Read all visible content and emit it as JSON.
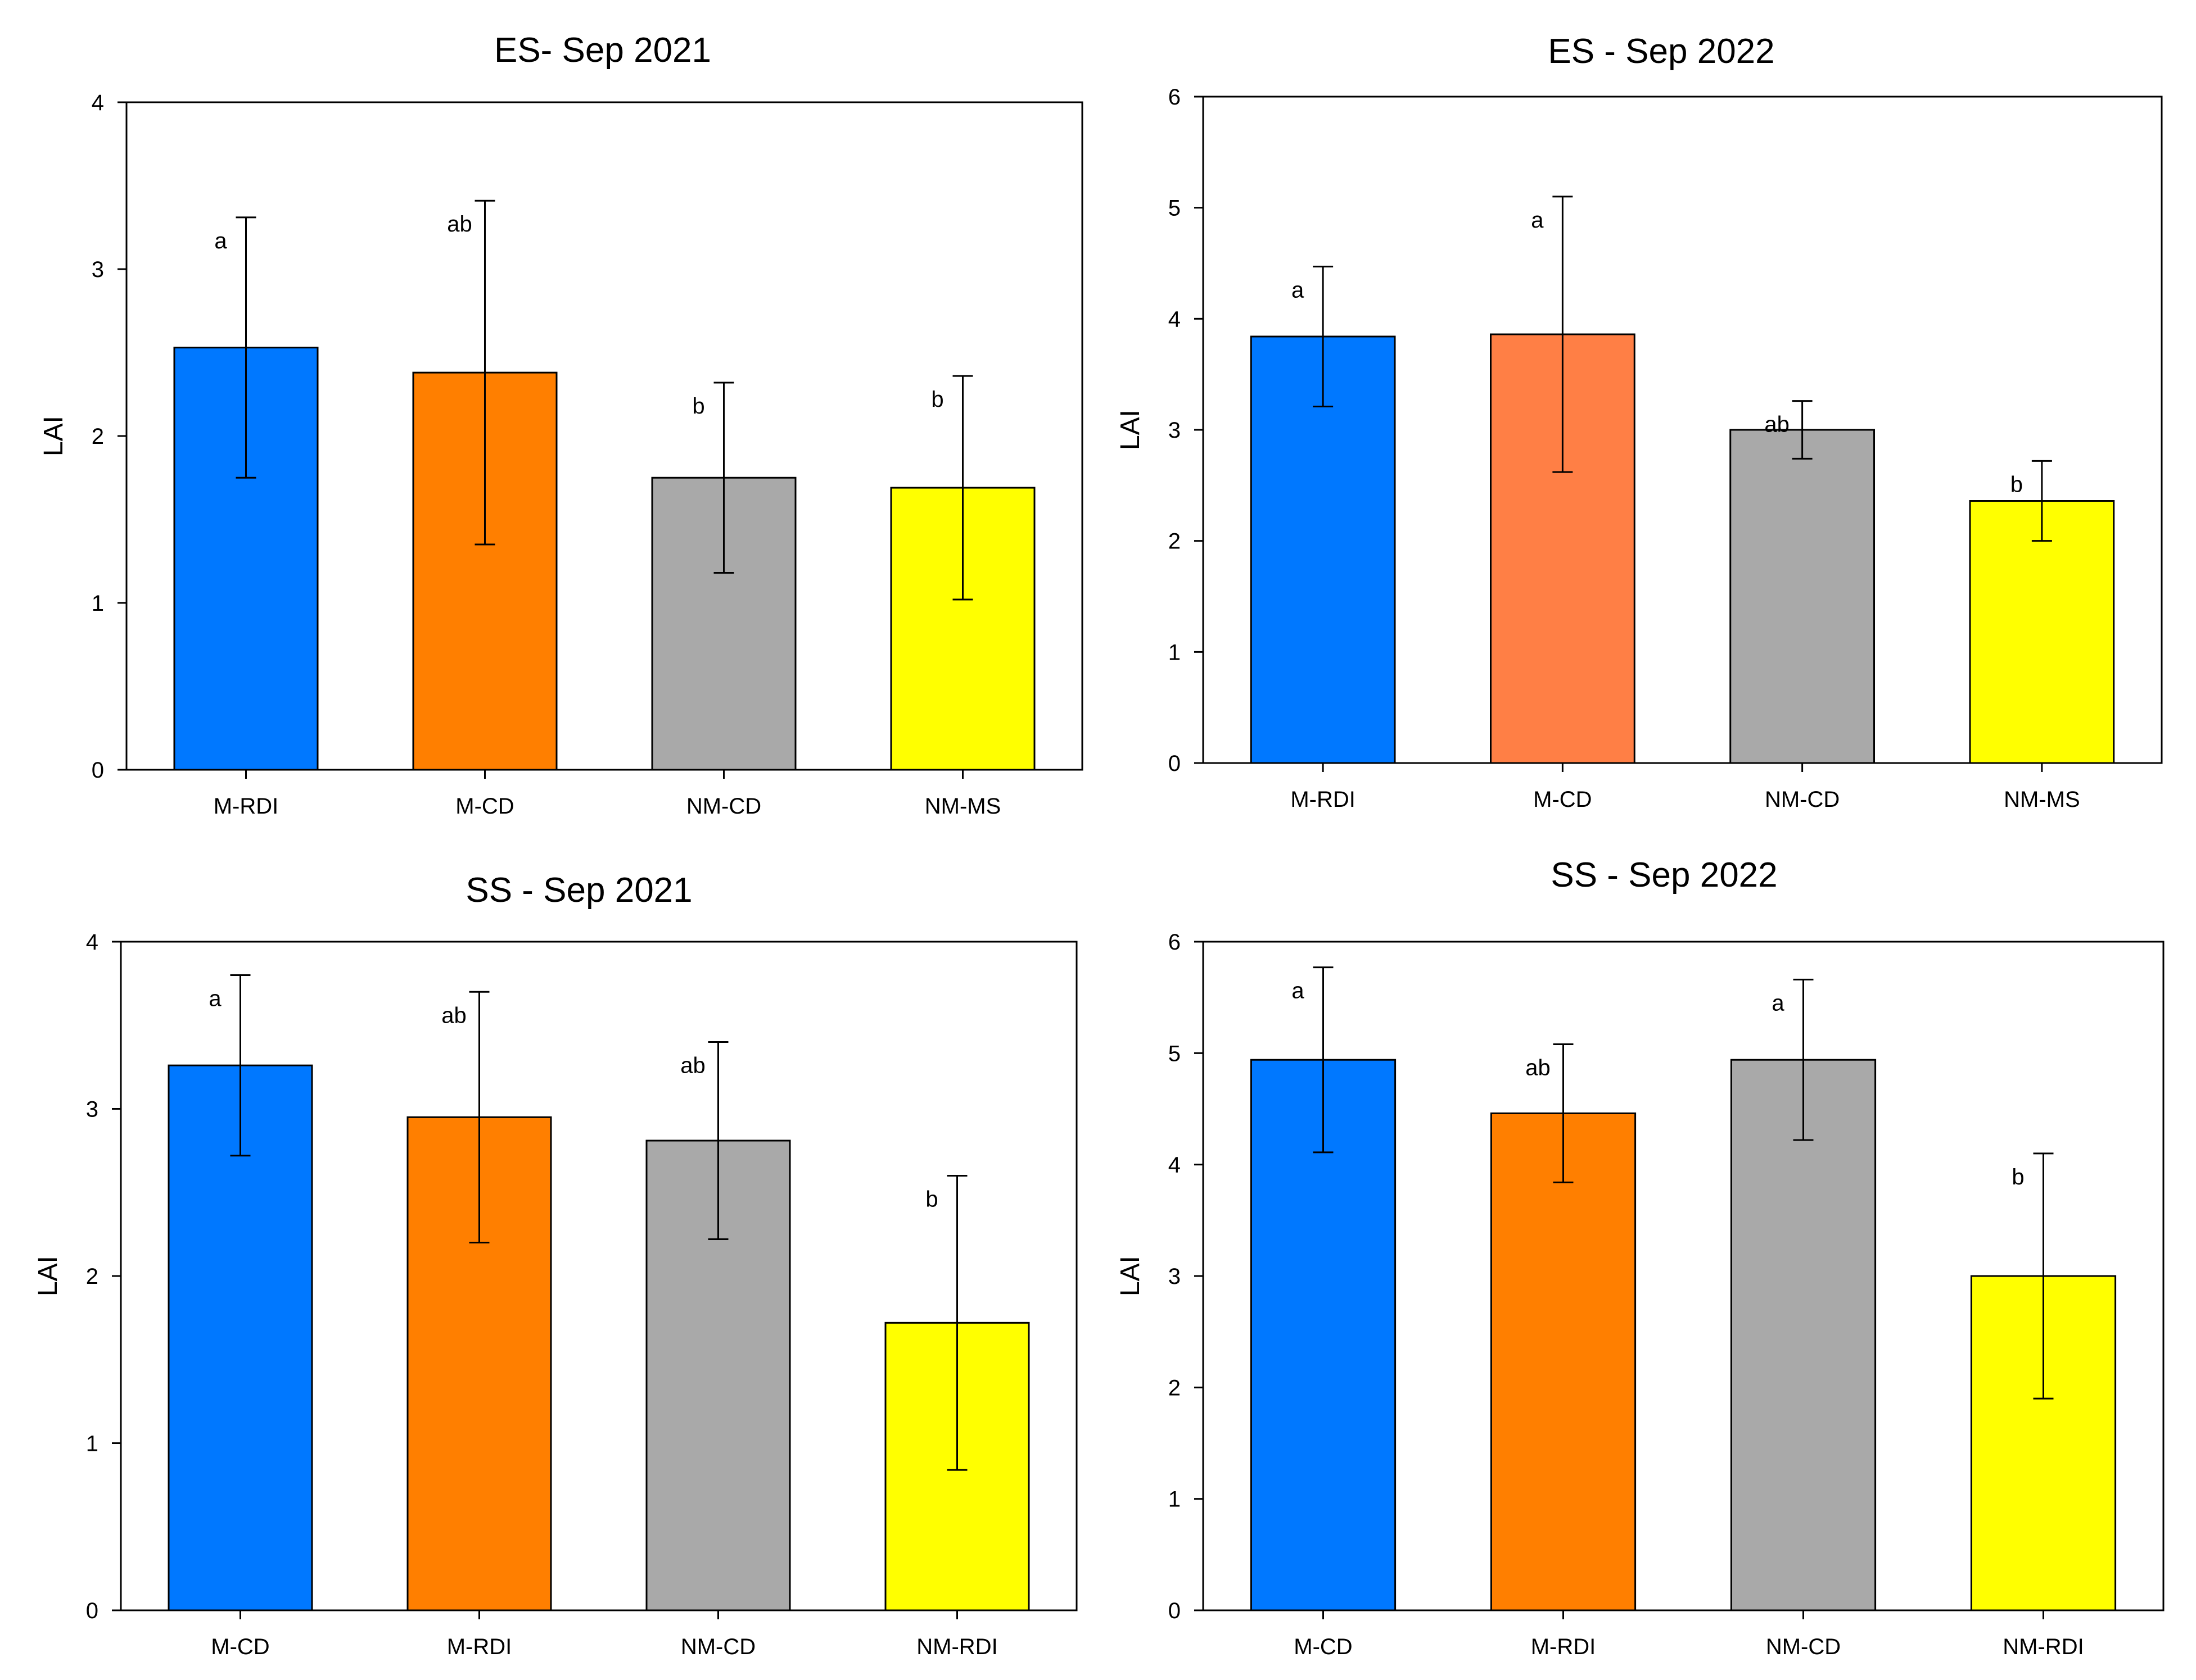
{
  "chart_data": [
    {
      "type": "bar",
      "title": "ES- Sep 2021",
      "xlabel": "",
      "ylabel": "LAI",
      "ylim": [
        0,
        4
      ],
      "yticks": [
        0,
        1,
        2,
        3,
        4
      ],
      "categories": [
        "M-RDI",
        "M-CD",
        "NM-CD",
        "NM-MS"
      ],
      "values": [
        2.53,
        2.38,
        1.75,
        1.69
      ],
      "errors": [
        0.78,
        1.03,
        0.57,
        0.67
      ],
      "letters": [
        "a",
        "ab",
        "b",
        "b"
      ],
      "colors": [
        "#0078ff",
        "#ff7f00",
        "#a9a9a9",
        "#ffff00"
      ]
    },
    {
      "type": "bar",
      "title": "ES - Sep 2022",
      "xlabel": "",
      "ylabel": "LAI",
      "ylim": [
        0,
        6
      ],
      "yticks": [
        0,
        1,
        2,
        3,
        4,
        5,
        6
      ],
      "categories": [
        "M-RDI",
        "M-CD",
        "NM-CD",
        "NM-MS"
      ],
      "values": [
        3.84,
        3.86,
        3.0,
        2.36
      ],
      "errors": [
        0.63,
        1.24,
        0.26,
        0.36
      ],
      "letters": [
        "a",
        "a",
        "ab",
        "b"
      ],
      "colors": [
        "#0078ff",
        "#ff7f45",
        "#a9a9a9",
        "#ffff00"
      ]
    },
    {
      "type": "bar",
      "title": "SS - Sep 2021",
      "xlabel": "",
      "ylabel": "LAI",
      "ylim": [
        0,
        4
      ],
      "yticks": [
        0,
        1,
        2,
        3,
        4
      ],
      "categories": [
        "M-CD",
        "M-RDI",
        "NM-CD",
        "NM-RDI"
      ],
      "values": [
        3.26,
        2.95,
        2.81,
        1.72
      ],
      "errors": [
        0.54,
        0.75,
        0.59,
        0.88
      ],
      "letters": [
        "a",
        "ab",
        "ab",
        "b"
      ],
      "colors": [
        "#0078ff",
        "#ff7f00",
        "#a9a9a9",
        "#ffff00"
      ]
    },
    {
      "type": "bar",
      "title": "SS - Sep 2022",
      "xlabel": "",
      "ylabel": "LAI",
      "ylim": [
        0,
        6
      ],
      "yticks": [
        0,
        1,
        2,
        3,
        4,
        5,
        6
      ],
      "categories": [
        "M-CD",
        "M-RDI",
        "NM-CD",
        "NM-RDI"
      ],
      "values": [
        4.94,
        4.46,
        4.94,
        3.0
      ],
      "errors": [
        0.83,
        0.62,
        0.72,
        1.1
      ],
      "letters": [
        "a",
        "ab",
        "a",
        "b"
      ],
      "colors": [
        "#0078ff",
        "#ff7f00",
        "#a9a9a9",
        "#ffff00"
      ]
    }
  ]
}
